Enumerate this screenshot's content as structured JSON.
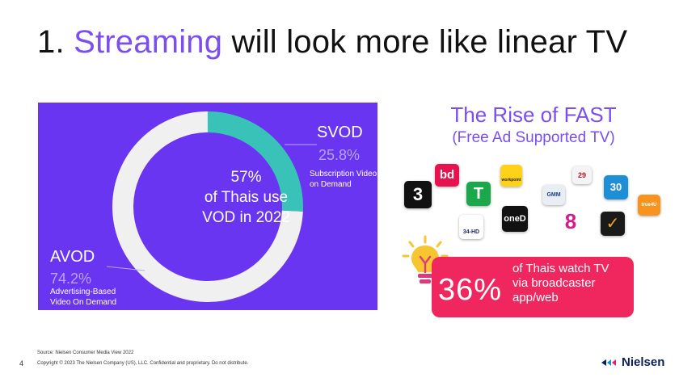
{
  "slide": {
    "title_number": "1.",
    "title_accent": "Streaming",
    "title_rest": "will look more like linear TV",
    "page_number": "4"
  },
  "donut": {
    "center_line1": "57%",
    "center_line2": "of Thais use",
    "center_line3": "VOD in 2022",
    "svod_label": "SVOD",
    "svod_value": "25.8%",
    "svod_desc_line1": "Subscription Video",
    "svod_desc_line2": "on Demand",
    "avod_label": "AVOD",
    "avod_value": "74.2%",
    "avod_desc_line1": "Advertising-Based",
    "avod_desc_line2": "Video On Demand",
    "svod_share": 25.8,
    "avod_share": 74.2,
    "colors": {
      "panel": "#6a35f0",
      "svod": "#39c3b8",
      "avod": "#f0f0f0"
    }
  },
  "fast": {
    "title": "The Rise of FAST",
    "subtitle": "(Free Ad Supported TV)",
    "logos": [
      {
        "name": "3-plus",
        "text": "3"
      },
      {
        "name": "bd",
        "text": "bd"
      },
      {
        "name": "t-sport",
        "text": "T"
      },
      {
        "name": "workpoint",
        "text": "workpoint"
      },
      {
        "name": "gmm",
        "text": "GMM"
      },
      {
        "name": "channel-29",
        "text": "29"
      },
      {
        "name": "mcot",
        "text": "30"
      },
      {
        "name": "true4u",
        "text": "true4U"
      },
      {
        "name": "channel-34",
        "text": "34-HD"
      },
      {
        "name": "one-d",
        "text": "oneD"
      },
      {
        "name": "channel-8",
        "text": "8"
      },
      {
        "name": "check",
        "text": "✓"
      }
    ]
  },
  "stat": {
    "value": "36%",
    "text_line1": "of Thais watch TV",
    "text_line2": "via broadcaster",
    "text_line3": "app/web"
  },
  "footer": {
    "source": "Source: Nielsen Consumer Media View 2022",
    "copyright": "Copyright © 2023 The Nielsen Company (US), LLC. Confidential and proprietary. Do not distribute.",
    "brand": "Nielsen"
  }
}
